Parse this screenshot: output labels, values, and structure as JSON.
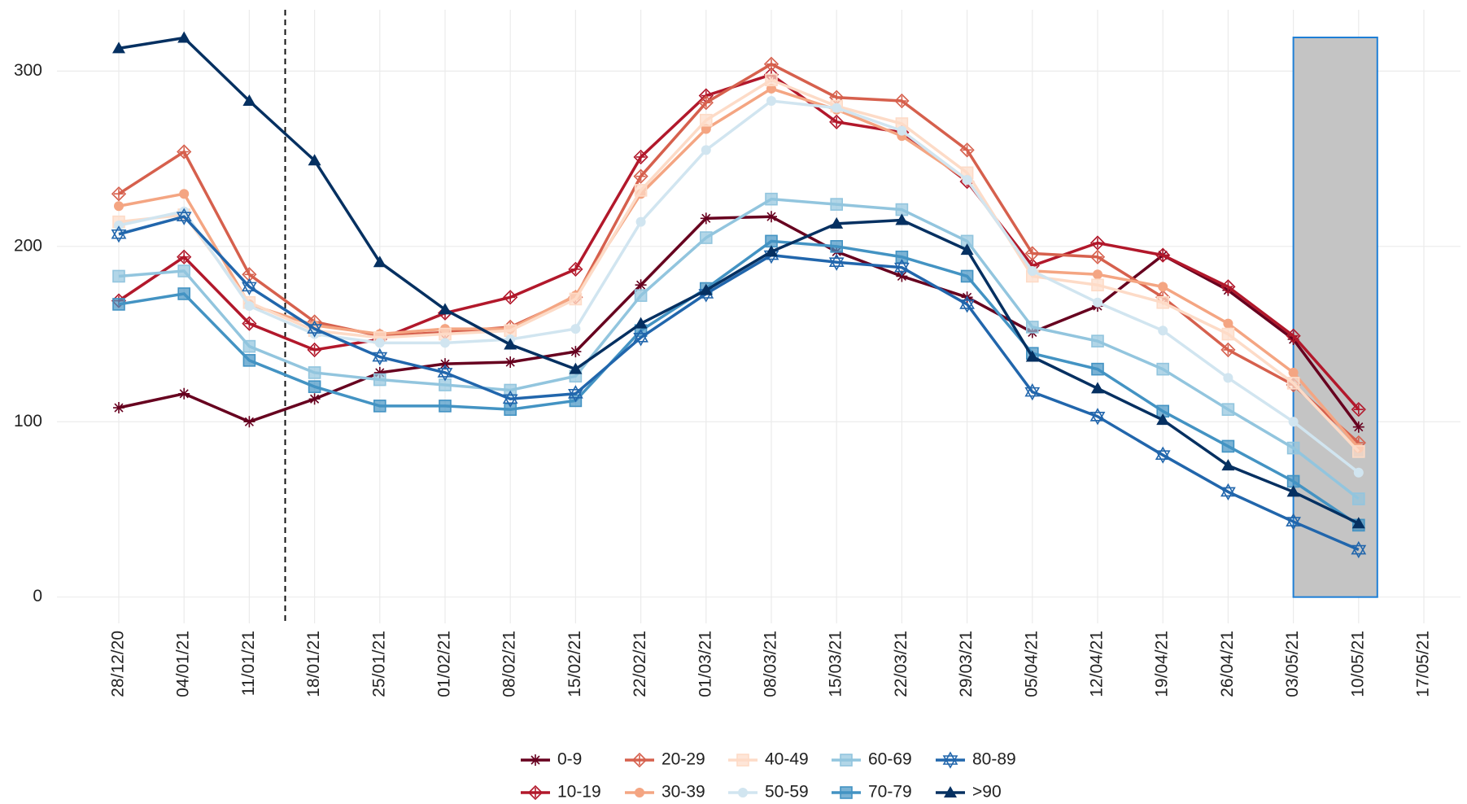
{
  "chart_data": {
    "type": "line",
    "categories": [
      "28/12/20",
      "04/01/21",
      "11/01/21",
      "18/01/21",
      "25/01/21",
      "01/02/21",
      "08/02/21",
      "15/02/21",
      "22/02/21",
      "01/03/21",
      "08/03/21",
      "15/03/21",
      "22/03/21",
      "29/03/21",
      "05/04/21",
      "12/04/21",
      "19/04/21",
      "26/04/21",
      "03/05/21",
      "10/05/21",
      "17/05/21"
    ],
    "series": [
      {
        "name": "0-9",
        "color": "#67001f",
        "marker": "asterisk",
        "values": [
          108,
          116,
          100,
          113,
          128,
          133,
          134,
          140,
          178,
          216,
          217,
          197,
          183,
          171,
          151,
          166,
          195,
          175,
          147,
          97,
          null
        ]
      },
      {
        "name": "10-19",
        "color": "#b2182b",
        "marker": "diamond",
        "values": [
          169,
          194,
          156,
          141,
          147,
          162,
          171,
          187,
          251,
          286,
          298,
          271,
          265,
          237,
          189,
          202,
          195,
          177,
          149,
          107,
          null
        ]
      },
      {
        "name": "20-29",
        "color": "#d6604d",
        "marker": "diamond",
        "values": [
          230,
          254,
          184,
          157,
          149,
          151,
          154,
          171,
          240,
          282,
          304,
          285,
          283,
          255,
          196,
          194,
          171,
          141,
          121,
          88,
          null
        ]
      },
      {
        "name": "30-39",
        "color": "#f4a582",
        "marker": "circle",
        "values": [
          223,
          230,
          167,
          155,
          150,
          153,
          153,
          172,
          230,
          267,
          290,
          278,
          263,
          238,
          186,
          184,
          177,
          156,
          128,
          85,
          null
        ]
      },
      {
        "name": "40-49",
        "color": "#fddbc7",
        "marker": "square",
        "values": [
          214,
          218,
          168,
          152,
          148,
          150,
          152,
          170,
          232,
          272,
          295,
          280,
          270,
          242,
          183,
          178,
          168,
          150,
          122,
          83,
          null
        ]
      },
      {
        "name": "50-59",
        "color": "#d1e5f0",
        "marker": "circle",
        "values": [
          212,
          220,
          166,
          150,
          145,
          145,
          147,
          153,
          214,
          255,
          283,
          279,
          266,
          238,
          186,
          168,
          152,
          125,
          100,
          71,
          null
        ]
      },
      {
        "name": "60-69",
        "color": "#92c5de",
        "marker": "square",
        "values": [
          183,
          186,
          143,
          128,
          124,
          121,
          118,
          126,
          172,
          205,
          227,
          224,
          221,
          203,
          154,
          146,
          130,
          107,
          85,
          56,
          null
        ]
      },
      {
        "name": "70-79",
        "color": "#4393c3",
        "marker": "square",
        "values": [
          167,
          173,
          135,
          120,
          109,
          109,
          107,
          112,
          152,
          176,
          203,
          200,
          194,
          183,
          139,
          130,
          106,
          86,
          66,
          41,
          null
        ]
      },
      {
        "name": "80-89",
        "color": "#2166ac",
        "marker": "star",
        "values": [
          207,
          217,
          177,
          153,
          137,
          128,
          113,
          116,
          148,
          173,
          195,
          191,
          188,
          167,
          117,
          103,
          81,
          60,
          43,
          27,
          null
        ]
      },
      {
        ">90": null,
        "name": ">90",
        "color": "#053061",
        "marker": "triangle",
        "values": [
          313,
          319,
          283,
          249,
          191,
          164,
          144,
          130,
          156,
          175,
          197,
          213,
          215,
          198,
          137,
          119,
          101,
          75,
          60,
          42,
          null
        ]
      }
    ],
    "ylim": [
      -15,
      335
    ],
    "yticks": [
      0,
      100,
      200,
      300
    ],
    "grid": true,
    "legend": "bottom"
  }
}
